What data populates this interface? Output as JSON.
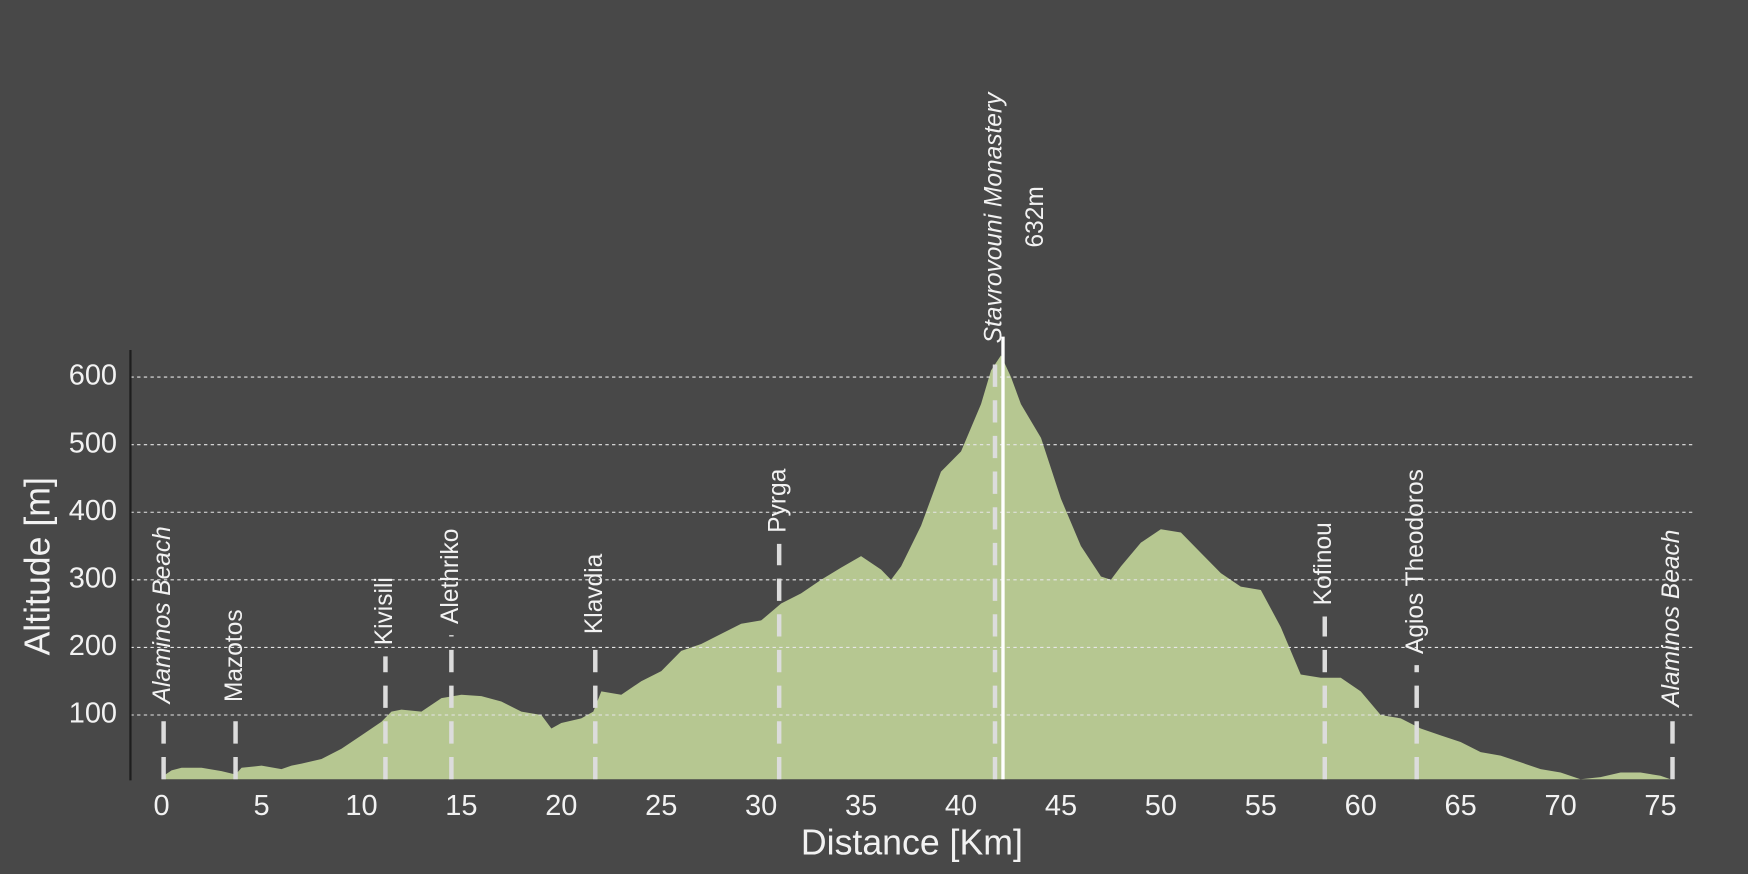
{
  "chart_data": {
    "type": "area",
    "x_label": "Distance [Km]",
    "y_label": "Altitude [m]",
    "color": "#b6c791",
    "background": "#484848",
    "grid": true,
    "xlim": [
      -1.56,
      76.7
    ],
    "ylim": [
      0,
      640
    ],
    "xticks": [
      0,
      5,
      10,
      15,
      20,
      25,
      30,
      35,
      40,
      45,
      50,
      55,
      60,
      65,
      70,
      75
    ],
    "yticks": [
      100,
      200,
      300,
      400,
      500,
      600
    ],
    "x": [
      0,
      0.5,
      1,
      2,
      3,
      3.7,
      4,
      5,
      6,
      6.5,
      7,
      8,
      9,
      10,
      11,
      11.5,
      12,
      13,
      14,
      15,
      16,
      17,
      18,
      19,
      19.5,
      20,
      21,
      21.6,
      22,
      23,
      24,
      25,
      26,
      27,
      28,
      29,
      30,
      31,
      32,
      33,
      34,
      35,
      36,
      36.5,
      37,
      38,
      39,
      40,
      41,
      41.5,
      42,
      42.5,
      43,
      44,
      45,
      46,
      47,
      47.5,
      48,
      49,
      50,
      51,
      52,
      53,
      54,
      55,
      56,
      57,
      58,
      59,
      60,
      61,
      62,
      63,
      64,
      65,
      66,
      67,
      68,
      69,
      70,
      71,
      72,
      73,
      74,
      75,
      75.5
    ],
    "values": [
      8,
      18,
      22,
      22,
      17,
      12,
      22,
      25,
      20,
      25,
      28,
      35,
      50,
      70,
      90,
      105,
      108,
      105,
      125,
      130,
      128,
      120,
      105,
      100,
      80,
      88,
      95,
      105,
      135,
      130,
      150,
      165,
      195,
      205,
      220,
      235,
      240,
      265,
      280,
      300,
      318,
      335,
      315,
      300,
      320,
      380,
      460,
      490,
      560,
      610,
      632,
      600,
      560,
      510,
      420,
      350,
      305,
      300,
      320,
      355,
      375,
      370,
      340,
      310,
      290,
      285,
      230,
      160,
      155,
      155,
      135,
      100,
      95,
      80,
      70,
      60,
      45,
      40,
      30,
      20,
      15,
      5,
      8,
      15,
      15,
      10,
      5
    ],
    "waypoints": [
      {
        "name": "Alaminos Beach",
        "x": 0.1,
        "italic": true
      },
      {
        "name": "Mazotos",
        "x": 3.7,
        "italic": false
      },
      {
        "name": "Kivisili",
        "x": 11.2,
        "italic": false
      },
      {
        "name": "Alethriko",
        "x": 14.5,
        "italic": false
      },
      {
        "name": "Klavdia",
        "x": 21.7,
        "italic": false
      },
      {
        "name": "Pyrga",
        "x": 30.9,
        "italic": false
      },
      {
        "name": "Stavrovouni Monastery",
        "x": 41.7,
        "italic": true
      },
      {
        "name": "Kofinou",
        "x": 58.2,
        "italic": false
      },
      {
        "name": "Agios Theodoros",
        "x": 62.8,
        "italic": false
      },
      {
        "name": "Alaminos Beach",
        "x": 75.6,
        "italic": true
      }
    ],
    "peak": {
      "x": 42.1,
      "value": 632,
      "label": "632m"
    }
  }
}
